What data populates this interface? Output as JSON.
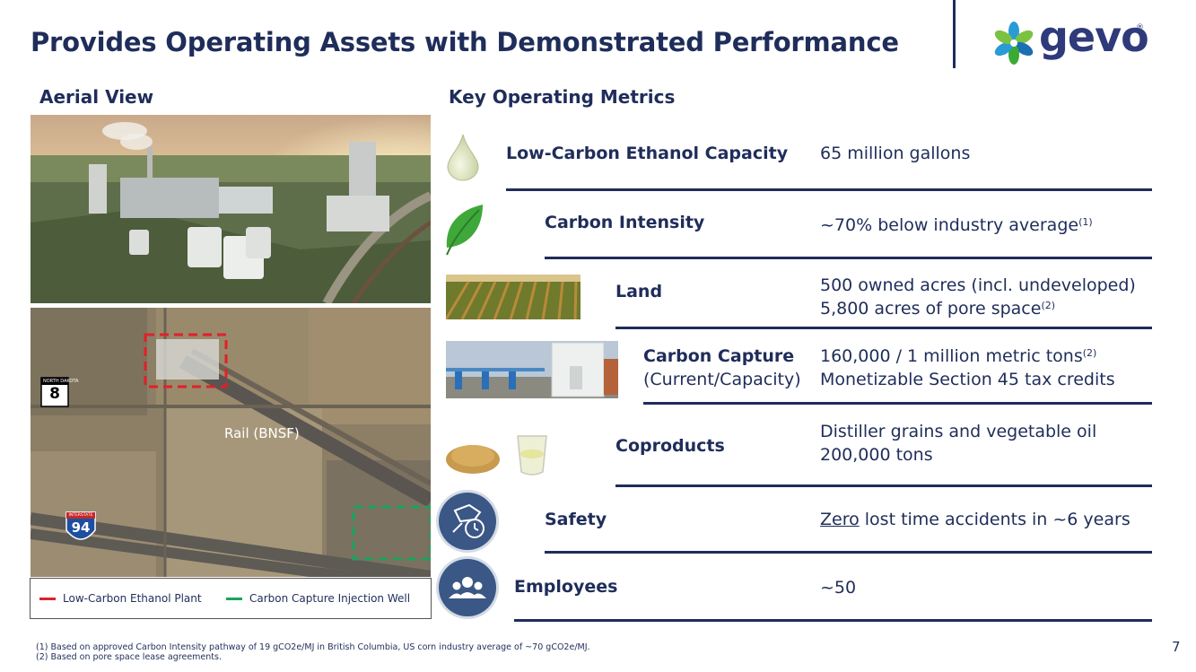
{
  "title": "Provides Operating Assets with Demonstrated Performance",
  "logo": {
    "text": "gevo",
    "registered": "®"
  },
  "aerial": {
    "heading": "Aerial View",
    "map_labels": {
      "rail": "Rail (BNSF)",
      "nd_route_header": "NORTH DAKOTA",
      "nd_route": "8",
      "interstate_header": "INTERSTATE",
      "interstate": "94"
    },
    "legend": [
      {
        "label": "Low-Carbon Ethanol Plant",
        "color": "#e0202a"
      },
      {
        "label": "Carbon Capture Injection Well",
        "color": "#1aa45a"
      }
    ]
  },
  "metrics": {
    "heading": "Key Operating Metrics",
    "items": [
      {
        "label": "Low-Carbon Ethanol Capacity",
        "sublabel": "",
        "value_lines": [
          {
            "text": "65 million gallons",
            "sup": ""
          }
        ],
        "icon": "droplet-icon"
      },
      {
        "label": "Carbon Intensity",
        "sublabel": "",
        "value_lines": [
          {
            "text": "~70% below industry average",
            "sup": "(1)"
          }
        ],
        "icon": "leaf-icon"
      },
      {
        "label": "Land",
        "sublabel": "",
        "value_lines": [
          {
            "text": "500 owned acres (incl. undeveloped)",
            "sup": ""
          },
          {
            "text": "5,800 acres of pore space",
            "sup": "(2)"
          }
        ],
        "icon": "crop-field-image"
      },
      {
        "label": "Carbon Capture",
        "sublabel": "(Current/Capacity)",
        "value_lines": [
          {
            "text": "160,000 / 1 million metric tons",
            "sup": "(2)"
          },
          {
            "text": "Monetizable Section 45 tax credits",
            "sup": ""
          }
        ],
        "icon": "carbon-capture-facility-image"
      },
      {
        "label": "Coproducts",
        "sublabel": "",
        "value_lines": [
          {
            "text": "Distiller grains and vegetable oil",
            "sup": ""
          },
          {
            "text": "200,000 tons",
            "sup": ""
          }
        ],
        "icon": "grains-and-oil-image"
      },
      {
        "label": "Safety",
        "sublabel": "",
        "value_underlined": "Zero",
        "value_rest": " lost time accidents in ~6 years",
        "icon": "safety-clock-icon"
      },
      {
        "label": "Employees",
        "sublabel": "",
        "value_lines": [
          {
            "text": "~50",
            "sup": ""
          }
        ],
        "icon": "people-group-icon"
      }
    ]
  },
  "footnotes": [
    "(1)  Based on approved Carbon Intensity pathway of 19 gCO2e/MJ in British Columbia, US corn industry average of ~70 gCO2e/MJ.",
    "(2)  Based on pore space lease agreements."
  ],
  "page_number": "7",
  "colors": {
    "navy": "#1f2d5a",
    "icon_circle": "#3a5785",
    "plant_box": "#e0202a",
    "well_box": "#1aa45a"
  }
}
